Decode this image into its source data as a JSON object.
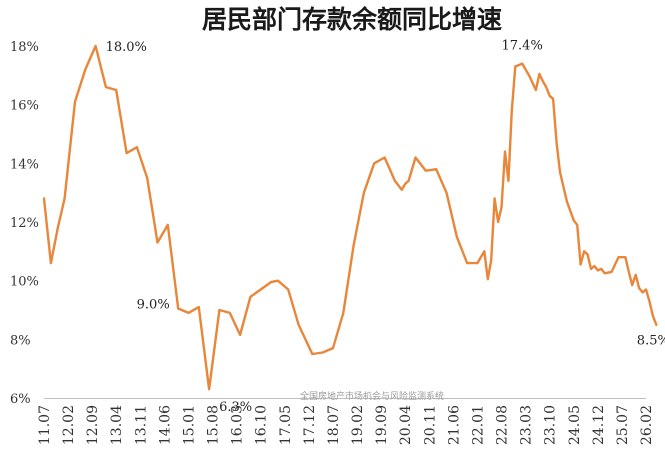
{
  "chart_data": {
    "type": "line",
    "title": "居民部门存款余额同比增速",
    "watermark": "全国房地产市场机会与风险监测系统",
    "ylim": [
      6,
      18
    ],
    "yticks": [
      "6%",
      "8%",
      "10%",
      "12%",
      "14%",
      "16%",
      "18%"
    ],
    "x_tick_labels": [
      "11.07",
      "12.02",
      "12.09",
      "13.04",
      "13.11",
      "14.06",
      "15.01",
      "15.08",
      "16.03",
      "16.10",
      "17.05",
      "17.12",
      "18.07",
      "19.02",
      "19.09",
      "20.04",
      "20.11",
      "21.06",
      "22.01",
      "22.08",
      "23.03",
      "23.10",
      "24.05",
      "24.12",
      "25.07",
      "26.02"
    ],
    "grid": false,
    "line_color": "#E8863A",
    "series": [
      {
        "name": "",
        "points": [
          [
            "2011.07",
            12.8
          ],
          [
            "2011.09",
            10.6
          ],
          [
            "2011.11",
            11.8
          ],
          [
            "2012.01",
            12.8
          ],
          [
            "2012.04",
            16.1
          ],
          [
            "2012.07",
            17.2
          ],
          [
            "2012.10",
            18.0
          ],
          [
            "2013.01",
            16.6
          ],
          [
            "2013.04",
            16.5
          ],
          [
            "2013.07",
            14.35
          ],
          [
            "2013.10",
            14.55
          ],
          [
            "2014.01",
            13.5
          ],
          [
            "2014.04",
            11.3
          ],
          [
            "2014.07",
            11.9
          ],
          [
            "2014.10",
            9.05
          ],
          [
            "2015.01",
            8.9
          ],
          [
            "2015.04",
            9.1
          ],
          [
            "2015.07",
            6.3
          ],
          [
            "2015.10",
            9.0
          ],
          [
            "2016.01",
            8.9
          ],
          [
            "2016.04",
            8.15
          ],
          [
            "2016.07",
            9.45
          ],
          [
            "2016.10",
            9.7
          ],
          [
            "2017.01",
            9.95
          ],
          [
            "2017.03",
            10.0
          ],
          [
            "2017.06",
            9.7
          ],
          [
            "2017.09",
            8.5
          ],
          [
            "2018.01",
            7.5
          ],
          [
            "2018.04",
            7.55
          ],
          [
            "2018.07",
            7.7
          ],
          [
            "2018.10",
            8.9
          ],
          [
            "2019.01",
            11.2
          ],
          [
            "2019.04",
            13.0
          ],
          [
            "2019.07",
            14.0
          ],
          [
            "2019.10",
            14.2
          ],
          [
            "2020.01",
            13.4
          ],
          [
            "2020.03",
            13.1
          ],
          [
            "2020.04",
            13.3
          ],
          [
            "2020.05",
            13.4
          ],
          [
            "2020.07",
            14.2
          ],
          [
            "2020.10",
            13.75
          ],
          [
            "2021.01",
            13.8
          ],
          [
            "2021.04",
            13.0
          ],
          [
            "2021.07",
            11.5
          ],
          [
            "2021.10",
            10.6
          ],
          [
            "2022.01",
            10.6
          ],
          [
            "2022.03",
            11.0
          ],
          [
            "2022.04",
            10.05
          ],
          [
            "2022.05",
            10.7
          ],
          [
            "2022.06",
            12.8
          ],
          [
            "2022.07",
            12.0
          ],
          [
            "2022.08",
            12.5
          ],
          [
            "2022.09",
            14.4
          ],
          [
            "2022.10",
            13.4
          ],
          [
            "2022.11",
            15.8
          ],
          [
            "2022.12",
            17.3
          ],
          [
            "2023.02",
            17.4
          ],
          [
            "2023.04",
            17.0
          ],
          [
            "2023.06",
            16.5
          ],
          [
            "2023.07",
            17.05
          ],
          [
            "2023.08",
            16.8
          ],
          [
            "2023.09",
            16.6
          ],
          [
            "2023.10",
            16.3
          ],
          [
            "2023.11",
            16.2
          ],
          [
            "2023.12",
            14.7
          ],
          [
            "2024.01",
            13.7
          ],
          [
            "2024.03",
            12.7
          ],
          [
            "2024.05",
            12.05
          ],
          [
            "2024.06",
            11.9
          ],
          [
            "2024.07",
            10.55
          ],
          [
            "2024.08",
            11.0
          ],
          [
            "2024.09",
            10.9
          ],
          [
            "2024.10",
            10.4
          ],
          [
            "2024.11",
            10.5
          ],
          [
            "2024.12",
            10.35
          ],
          [
            "2025.01",
            10.4
          ],
          [
            "2025.02",
            10.25
          ],
          [
            "2025.04",
            10.3
          ],
          [
            "2025.06",
            10.8
          ],
          [
            "2025.08",
            10.8
          ],
          [
            "2025.09",
            10.3
          ],
          [
            "2025.10",
            9.85
          ],
          [
            "2025.11",
            10.2
          ],
          [
            "2025.12",
            9.75
          ],
          [
            "2026.01",
            9.6
          ],
          [
            "2026.02",
            9.7
          ],
          [
            "2026.03",
            9.3
          ],
          [
            "2026.04",
            8.8
          ],
          [
            "2026.05",
            8.5
          ]
        ]
      }
    ],
    "annotations": [
      {
        "text": "18.0%",
        "at": "2012.10",
        "value": 18.0,
        "place": "right"
      },
      {
        "text": "9.0%",
        "at": "2014.10",
        "value": 9.05,
        "place": "left"
      },
      {
        "text": "6.3%",
        "at": "2015.07",
        "value": 6.3,
        "place": "below-right"
      },
      {
        "text": "17.4%",
        "at": "2023.02",
        "value": 17.4,
        "place": "above"
      },
      {
        "text": "8.5%",
        "at": "2026.05",
        "value": 8.5,
        "place": "below"
      }
    ]
  }
}
